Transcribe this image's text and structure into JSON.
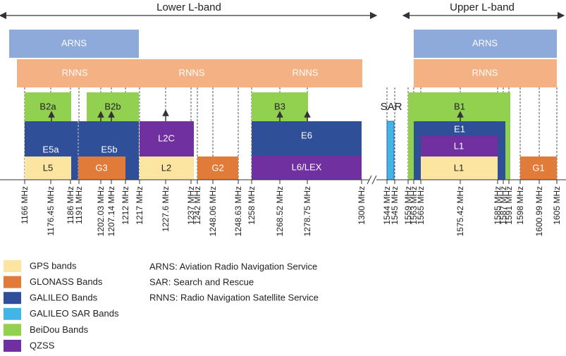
{
  "header": {
    "lower": "Lower L-band",
    "upper": "Upper L-band"
  },
  "services": [
    "ARNS",
    "ARNS",
    "RNNS",
    "RNNS",
    "RNNS",
    "RNNS"
  ],
  "signals": [
    "B2a",
    "B2b",
    "B3",
    "B1",
    "E5a",
    "E5b",
    "E6",
    "E1",
    "L2C",
    "L6/LEX",
    "L1",
    "L5",
    "L2",
    "L1",
    "G3",
    "G2",
    "G1",
    "SAR"
  ],
  "frequencies": [
    "1166 MHz",
    "1176.45 MHz",
    "1186 MHz",
    "1191 MHz",
    "1202.03 MHz",
    "1207.14 MHz",
    "1212 MHz",
    "1217 MHz",
    "1227.6 MHz",
    "1237 MHz",
    "1242 MHz",
    "1248.06 MHz",
    "1248.63 MHz",
    "1258 MHz",
    "1268.52 MHz",
    "1278.75 MHz",
    "1300 MHz",
    "1544 MHz",
    "1545 MHz",
    "1559 MHz",
    "1563 MHz",
    "1565 MHz",
    "1575.42 MHz",
    "1585 MHz",
    "1587 MHz",
    "1591 MHz",
    "1598 MHz",
    "1600.99 MHz",
    "1605 MHz"
  ],
  "legend": [
    "GPS bands",
    "GLONASS Bands",
    "GALILEO Bands",
    "GALILEO SAR Bands",
    "BeiDou Bands",
    "QZSS"
  ],
  "definitions": [
    "ARNS: Aviation Radio Navigation Service",
    "SAR: Search and Rescue",
    "RNNS: Radio Navigation Satellite Service"
  ]
}
